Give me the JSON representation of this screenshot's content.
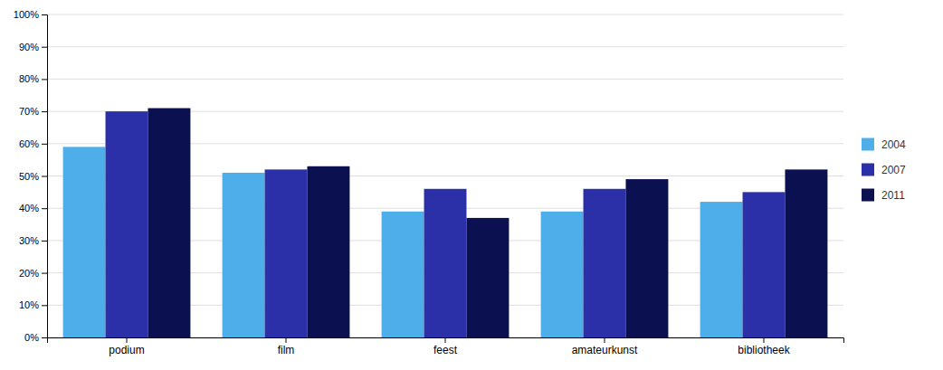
{
  "chart_data": {
    "type": "bar",
    "categories": [
      "podium",
      "film",
      "feest",
      "amateurkunst",
      "bibliotheek"
    ],
    "series": [
      {
        "name": "2004",
        "color": "#4DAEEA",
        "values": [
          0.59,
          0.51,
          0.39,
          0.39,
          0.42
        ]
      },
      {
        "name": "2007",
        "color": "#2B2FA8",
        "values": [
          0.7,
          0.52,
          0.46,
          0.46,
          0.45
        ]
      },
      {
        "name": "2011",
        "color": "#0B1150",
        "values": [
          0.71,
          0.53,
          0.37,
          0.49,
          0.52
        ]
      }
    ],
    "ylim": [
      0,
      1.0
    ],
    "yticks": [
      {
        "value": 0.0,
        "label": "0%"
      },
      {
        "value": 0.1,
        "label": "10%"
      },
      {
        "value": 0.2,
        "label": "20%"
      },
      {
        "value": 0.3,
        "label": "30%"
      },
      {
        "value": 0.4,
        "label": "40%"
      },
      {
        "value": 0.5,
        "label": "50%"
      },
      {
        "value": 0.6,
        "label": "60%"
      },
      {
        "value": 0.7,
        "label": "70%"
      },
      {
        "value": 0.8,
        "label": "80%"
      },
      {
        "value": 0.9,
        "label": "90%"
      },
      {
        "value": 1.0,
        "label": "100%"
      }
    ],
    "grid": true,
    "legend": "right"
  }
}
